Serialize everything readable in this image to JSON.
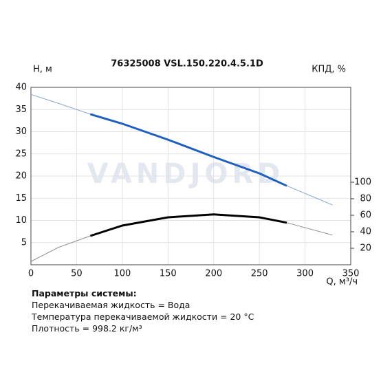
{
  "chart_data": {
    "type": "line",
    "title": "76325008 VSL.150.220.4.5.1D",
    "ylabel": "H, м",
    "y2label": "КПД, %",
    "xlabel": "Q, м³/ч",
    "watermark": "VANDJORD",
    "x": [
      0,
      30,
      65,
      100,
      150,
      200,
      250,
      280,
      330
    ],
    "series": [
      {
        "color": "#7fa3d9",
        "values": [
          38.4,
          36.4,
          33.95,
          31.8,
          28.2,
          24.3,
          20.6,
          17.8,
          13.5
        ]
      },
      {
        "color": "#1f5fbf",
        "values": [
          null,
          null,
          33.95,
          31.8,
          28.2,
          24.3,
          20.6,
          17.8,
          null
        ]
      },
      {
        "color": "#888888",
        "axis": "y2",
        "values": [
          4,
          21,
          35,
          47.5,
          57.5,
          61,
          57.5,
          51,
          36
        ]
      },
      {
        "color": "#000000",
        "axis": "y2",
        "values": [
          null,
          null,
          35,
          47.5,
          57.5,
          61,
          57.5,
          51,
          null
        ]
      }
    ],
    "xlim": [
      0,
      350
    ],
    "xticks": [
      0,
      50,
      100,
      150,
      200,
      250,
      300,
      350
    ],
    "ylim": [
      0,
      40
    ],
    "yticks": [
      5,
      10,
      15,
      20,
      25,
      30,
      35,
      40
    ],
    "y2lim": [
      0,
      215
    ],
    "y2ticks": [
      20,
      40,
      60,
      80,
      100
    ],
    "grid": true
  },
  "notes": {
    "heading": "Параметры системы:",
    "lines": [
      "Перекачиваемая жидкость = Вода",
      "Температура перекачиваемой жидкости = 20 °C",
      "Плотность = 998.2 кг/м³"
    ]
  }
}
